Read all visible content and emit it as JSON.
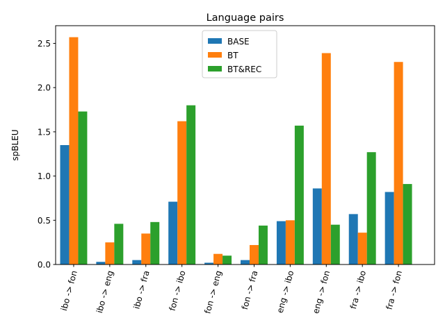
{
  "chart_data": {
    "type": "bar",
    "title": "Language pairs",
    "xlabel": "",
    "ylabel": "spBLEU",
    "ylim": [
      0,
      2.7
    ],
    "yticks": [
      "0.0",
      "0.5",
      "1.0",
      "1.5",
      "2.0",
      "2.5"
    ],
    "categories": [
      "ibo -> fon",
      "ibo -> eng",
      "ibo -> fra",
      "fon -> ibo",
      "fon -> eng",
      "fon -> fra",
      "eng -> ibo",
      "eng -> fon",
      "fra -> ibo",
      "fra -> fon"
    ],
    "series": [
      {
        "name": "BASE",
        "color": "#1f77b4",
        "values": [
          1.35,
          0.03,
          0.05,
          0.71,
          0.02,
          0.05,
          0.49,
          0.86,
          0.57,
          0.82
        ]
      },
      {
        "name": "BT",
        "color": "#ff7f0e",
        "values": [
          2.57,
          0.25,
          0.35,
          1.62,
          0.12,
          0.22,
          0.5,
          2.39,
          0.36,
          2.29
        ]
      },
      {
        "name": "BT&REC",
        "color": "#2ca02c",
        "values": [
          1.73,
          0.46,
          0.48,
          1.8,
          0.1,
          0.44,
          1.57,
          0.45,
          1.27,
          0.91
        ]
      }
    ],
    "legend_position": "top-center",
    "grid": false
  }
}
